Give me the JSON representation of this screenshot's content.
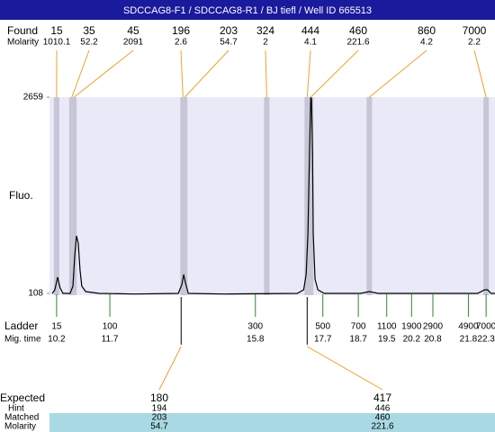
{
  "chart_data": {
    "type": "line",
    "title": "SDCCAG8-F1 / SDCCAG8-R1 / BJ tiefl / Well ID 665513",
    "ylabel": "Fluo.",
    "ylim": [
      108,
      2659
    ],
    "yticks": [
      108,
      2659
    ],
    "xlim": [
      10.0,
      22.55
    ],
    "color": "#000000",
    "x": [
      10.08,
      10.15,
      10.23,
      10.3,
      10.38,
      10.58,
      10.66,
      10.71,
      10.76,
      10.81,
      10.86,
      10.91,
      11.02,
      11.4,
      12.41,
      13.63,
      13.73,
      13.78,
      13.83,
      13.91,
      14.95,
      16.98,
      17.16,
      17.23,
      17.28,
      17.33,
      17.36,
      17.38,
      17.41,
      17.43,
      17.48,
      17.56,
      17.74,
      18.76,
      19.01,
      19.26,
      22.06,
      22.26,
      22.34,
      22.44,
      22.55
    ],
    "values": [
      108,
      155,
      319,
      178,
      108,
      108,
      202,
      588,
      857,
      763,
      412,
      202,
      131,
      108,
      100,
      108,
      225,
      354,
      248,
      108,
      100,
      108,
      155,
      354,
      880,
      2050,
      2659,
      2636,
      1933,
      880,
      295,
      155,
      108,
      108,
      131,
      108,
      108,
      155,
      155,
      108,
      108
    ],
    "found": {
      "label": "Found",
      "molarity_label": "Molarity",
      "peaks": [
        {
          "size": 15,
          "molarity": 1010.1,
          "time": 10.2
        },
        {
          "size": 35,
          "molarity": 52.2,
          "time": 10.63
        },
        {
          "size": 45,
          "molarity": 2091,
          "time": 10.69
        },
        {
          "size": 196,
          "molarity": 2.6,
          "time": 13.76
        },
        {
          "size": 203,
          "molarity": 54.7,
          "time": 13.81
        },
        {
          "size": 324,
          "molarity": 2,
          "time": 16.12
        },
        {
          "size": 444,
          "molarity": 4.1,
          "time": 17.26
        },
        {
          "size": 460,
          "molarity": 221.6,
          "time": 17.36
        },
        {
          "size": 860,
          "molarity": 4.2,
          "time": 19.01
        },
        {
          "size": 7000,
          "molarity": 2.2,
          "time": 22.3
        }
      ]
    },
    "ladder": {
      "label": "Ladder",
      "time_label": "Mig. time",
      "peaks": [
        {
          "size": 15,
          "time": 10.2
        },
        {
          "size": 100,
          "time": 11.7
        },
        {
          "size": 300,
          "time": 15.8
        },
        {
          "size": 500,
          "time": 17.7
        },
        {
          "size": 700,
          "time": 18.7
        },
        {
          "size": 1100,
          "time": 19.5
        },
        {
          "size": 1900,
          "time": 20.2
        },
        {
          "size": 2900,
          "time": 20.8
        },
        {
          "size": 4900,
          "time": 21.8
        },
        {
          "size": 7000,
          "time": 22.3
        }
      ]
    },
    "expected": {
      "expected_label": "Expected",
      "hint_label": "Hint",
      "matched_label": "Matched",
      "molarity_label": "Molarity",
      "peaks": [
        {
          "expected": 180,
          "hint": 194,
          "matched": 203,
          "molarity": 54.7,
          "time": 13.81
        },
        {
          "expected": 417,
          "hint": 446,
          "matched": 460,
          "molarity": 221.6,
          "time": 17.36
        }
      ]
    }
  }
}
